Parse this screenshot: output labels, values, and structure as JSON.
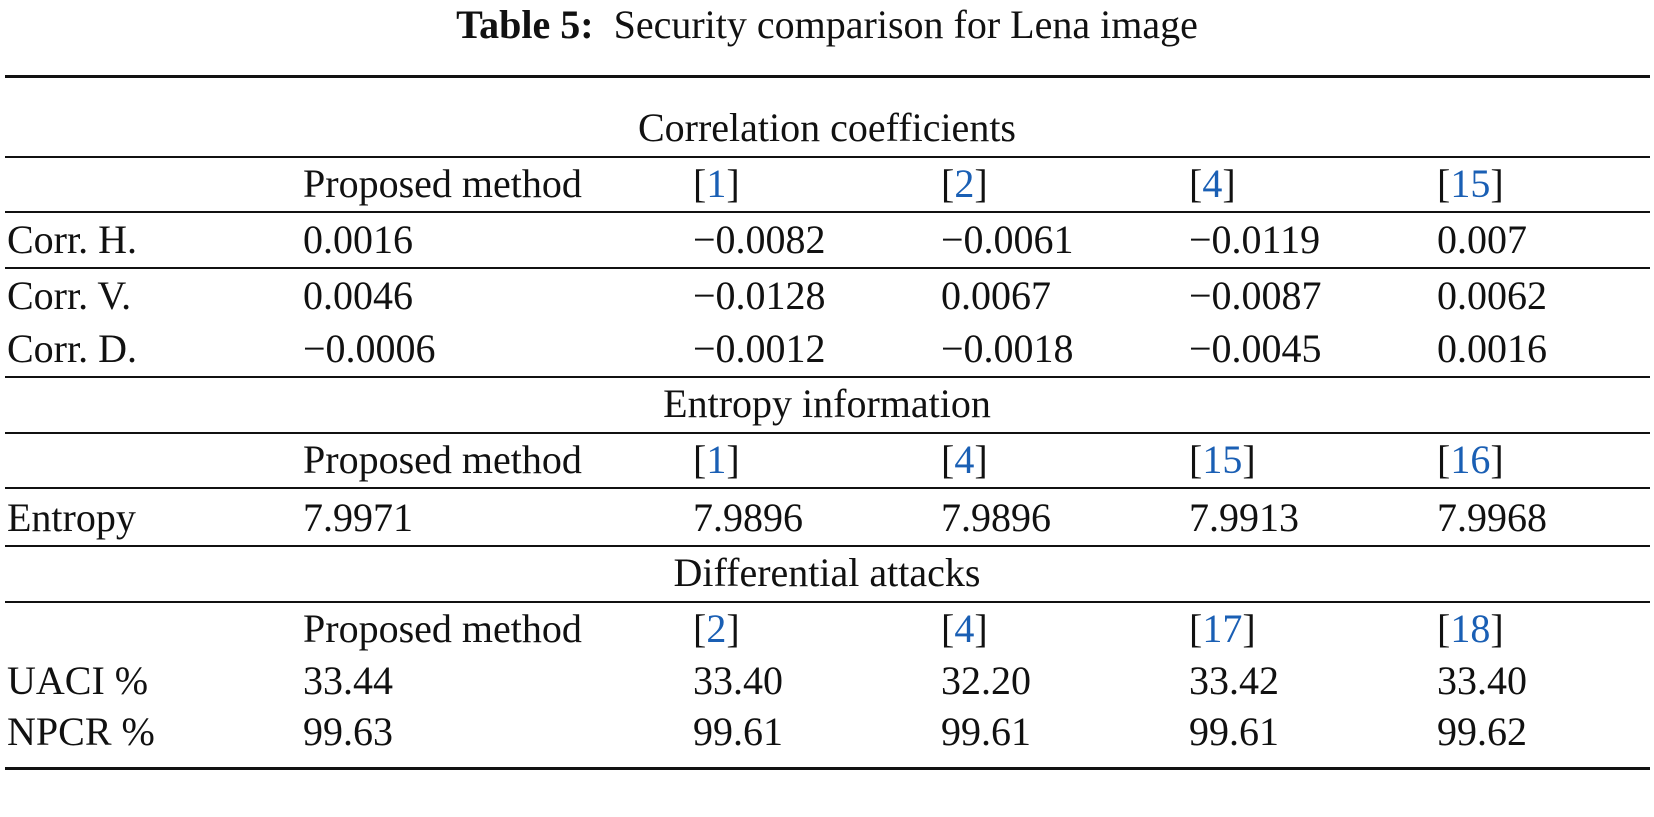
{
  "caption": {
    "label": "Table 5:",
    "text": "Security comparison for Lena image"
  },
  "sections": {
    "correlation": {
      "title": "Correlation coefficients",
      "header": [
        "Proposed method",
        "1",
        "2",
        "4",
        "15"
      ],
      "rows": [
        {
          "label": "Corr. H.",
          "values": [
            "0.0016",
            "−0.0082",
            "−0.0061",
            "−0.0119",
            "0.007"
          ]
        },
        {
          "label": "Corr. V.",
          "values": [
            "0.0046",
            "−0.0128",
            "0.0067",
            "−0.0087",
            "0.0062"
          ]
        },
        {
          "label": "Corr. D.",
          "values": [
            "−0.0006",
            "−0.0012",
            "−0.0018",
            "−0.0045",
            "0.0016"
          ]
        }
      ]
    },
    "entropy": {
      "title": "Entropy information",
      "header": [
        "Proposed method",
        "1",
        "4",
        "15",
        "16"
      ],
      "rows": [
        {
          "label": "Entropy",
          "values": [
            "7.9971",
            "7.9896",
            "7.9896",
            "7.9913",
            "7.9968"
          ]
        }
      ]
    },
    "differential": {
      "title": "Differential attacks",
      "header": [
        "Proposed method",
        "2",
        "4",
        "17",
        "18"
      ],
      "rows": [
        {
          "label": "UACI %",
          "values": [
            "33.44",
            "33.40",
            "32.20",
            "33.42",
            "33.40"
          ]
        },
        {
          "label": "NPCR %",
          "values": [
            "99.63",
            "99.61",
            "99.61",
            "99.61",
            "99.62"
          ]
        }
      ]
    }
  }
}
